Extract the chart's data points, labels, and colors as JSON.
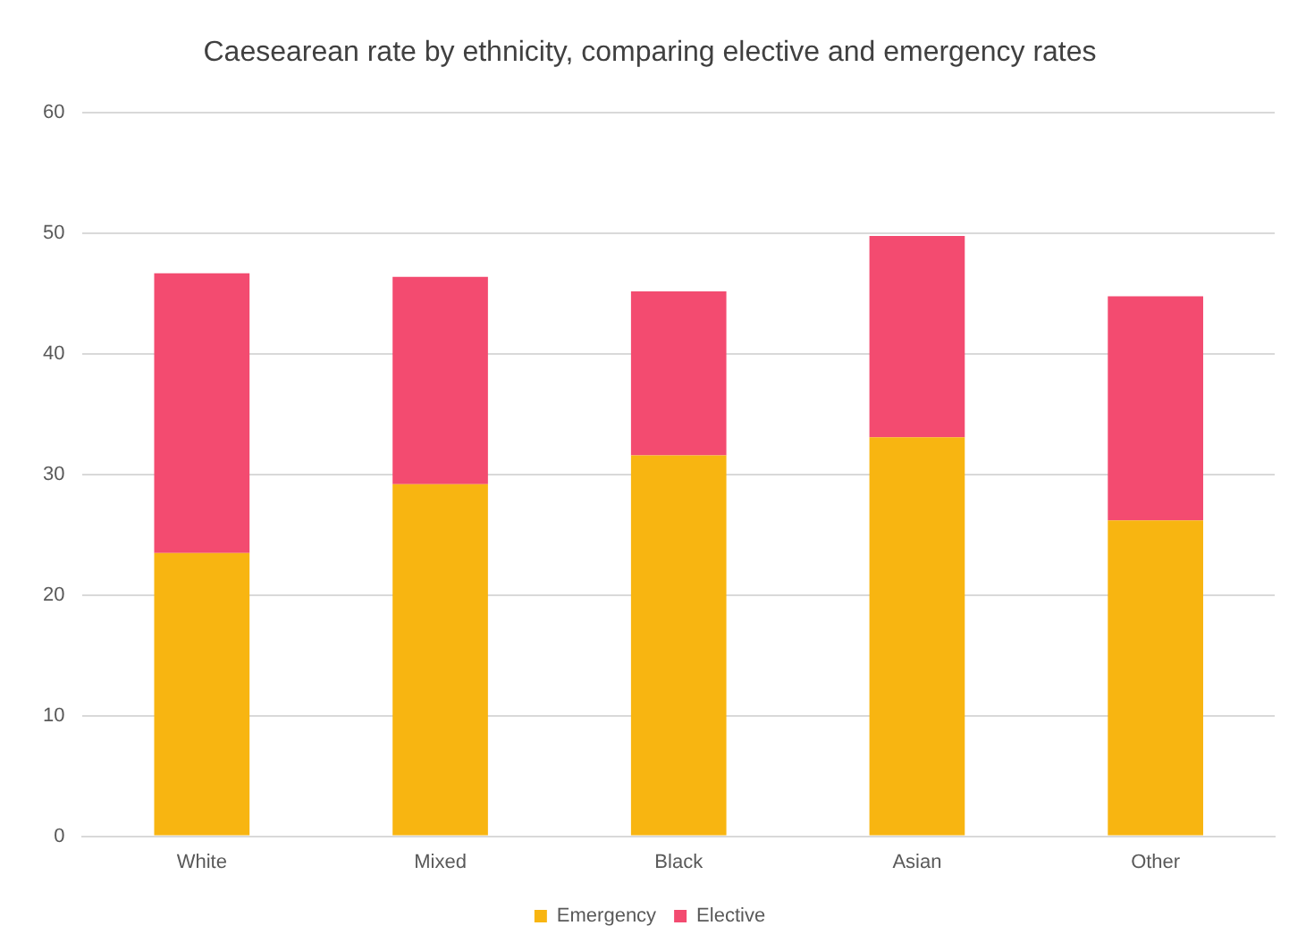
{
  "chart_data": {
    "type": "bar",
    "title": "Caesearean rate by ethnicity, comparing elective and emergency rates",
    "categories": [
      "White",
      "Mixed",
      "Black",
      "Asian",
      "Other"
    ],
    "stacked": true,
    "series": [
      {
        "name": "Emergency",
        "color": "#f8b511",
        "values": [
          23.5,
          29.2,
          31.6,
          33.1,
          26.2
        ]
      },
      {
        "name": "Elective",
        "color": "#f34b70",
        "values": [
          23.2,
          17.2,
          13.6,
          16.7,
          18.6
        ]
      }
    ],
    "ylim": [
      0,
      60
    ],
    "yticks": [
      0,
      10,
      20,
      30,
      40,
      50,
      60
    ],
    "grid": "y",
    "legend": "bottom"
  }
}
